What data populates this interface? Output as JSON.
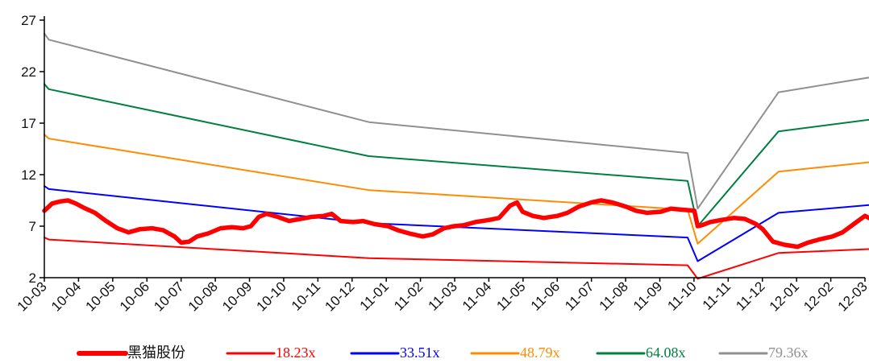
{
  "chart_data": {
    "type": "line",
    "title": "",
    "xlabel": "",
    "ylabel": "",
    "ylim": [
      2,
      27
    ],
    "yticks": [
      2,
      7,
      12,
      17,
      22,
      27
    ],
    "x_start": "2010-03",
    "x_end": "2012-03",
    "x_ticks": [
      "10-03",
      "10-04",
      "10-05",
      "10-06",
      "10-07",
      "10-08",
      "10-09",
      "10-10",
      "10-11",
      "10-12",
      "11-01",
      "11-02",
      "11-03",
      "11-04",
      "11-05",
      "11-06",
      "11-07",
      "11-08",
      "11-09",
      "11-10",
      "11-11",
      "11-12",
      "12-01",
      "12-02",
      "12-03"
    ],
    "grid": false,
    "legend_position": "bottom",
    "series": [
      {
        "name": "黑猫股份",
        "color": "#ff0000",
        "points": [
          [
            "2010-03-01",
            8.5
          ],
          [
            "2010-03-08",
            9.2
          ],
          [
            "2010-03-15",
            9.4
          ],
          [
            "2010-03-22",
            9.5
          ],
          [
            "2010-03-29",
            9.2
          ],
          [
            "2010-04-05",
            8.8
          ],
          [
            "2010-04-15",
            8.3
          ],
          [
            "2010-04-25",
            7.5
          ],
          [
            "2010-05-05",
            6.8
          ],
          [
            "2010-05-15",
            6.4
          ],
          [
            "2010-05-25",
            6.7
          ],
          [
            "2010-06-05",
            6.8
          ],
          [
            "2010-06-15",
            6.6
          ],
          [
            "2010-06-25",
            6.0
          ],
          [
            "2010-07-01",
            5.4
          ],
          [
            "2010-07-08",
            5.5
          ],
          [
            "2010-07-15",
            6.0
          ],
          [
            "2010-07-25",
            6.3
          ],
          [
            "2010-08-05",
            6.8
          ],
          [
            "2010-08-15",
            6.9
          ],
          [
            "2010-08-25",
            6.8
          ],
          [
            "2010-09-01",
            7.0
          ],
          [
            "2010-09-08",
            7.9
          ],
          [
            "2010-09-15",
            8.2
          ],
          [
            "2010-09-25",
            7.9
          ],
          [
            "2010-10-05",
            7.5
          ],
          [
            "2010-10-15",
            7.7
          ],
          [
            "2010-10-25",
            7.9
          ],
          [
            "2010-11-05",
            8.0
          ],
          [
            "2010-11-12",
            8.2
          ],
          [
            "2010-11-20",
            7.5
          ],
          [
            "2010-12-01",
            7.4
          ],
          [
            "2010-12-10",
            7.5
          ],
          [
            "2010-12-20",
            7.2
          ],
          [
            "2011-01-01",
            7.0
          ],
          [
            "2011-01-10",
            6.6
          ],
          [
            "2011-01-20",
            6.3
          ],
          [
            "2011-02-01",
            6.0
          ],
          [
            "2011-02-10",
            6.2
          ],
          [
            "2011-02-20",
            6.8
          ],
          [
            "2011-03-01",
            7.0
          ],
          [
            "2011-03-10",
            7.1
          ],
          [
            "2011-03-20",
            7.4
          ],
          [
            "2011-04-01",
            7.6
          ],
          [
            "2011-04-10",
            7.8
          ],
          [
            "2011-04-20",
            9.0
          ],
          [
            "2011-04-26",
            9.3
          ],
          [
            "2011-05-01",
            8.4
          ],
          [
            "2011-05-10",
            8.0
          ],
          [
            "2011-05-20",
            7.8
          ],
          [
            "2011-06-01",
            8.0
          ],
          [
            "2011-06-10",
            8.3
          ],
          [
            "2011-06-20",
            8.9
          ],
          [
            "2011-07-01",
            9.3
          ],
          [
            "2011-07-10",
            9.5
          ],
          [
            "2011-07-20",
            9.3
          ],
          [
            "2011-08-01",
            8.9
          ],
          [
            "2011-08-10",
            8.5
          ],
          [
            "2011-08-20",
            8.3
          ],
          [
            "2011-09-01",
            8.4
          ],
          [
            "2011-09-10",
            8.7
          ],
          [
            "2011-09-20",
            8.6
          ],
          [
            "2011-10-01",
            8.5
          ],
          [
            "2011-10-04",
            7.0
          ],
          [
            "2011-10-08",
            7.1
          ],
          [
            "2011-10-15",
            7.4
          ],
          [
            "2011-10-25",
            7.6
          ],
          [
            "2011-11-05",
            7.8
          ],
          [
            "2011-11-15",
            7.7
          ],
          [
            "2011-11-25",
            7.2
          ],
          [
            "2011-12-01",
            6.7
          ],
          [
            "2011-12-10",
            5.5
          ],
          [
            "2011-12-20",
            5.2
          ],
          [
            "2012-01-01",
            5.0
          ],
          [
            "2012-01-10",
            5.4
          ],
          [
            "2012-01-20",
            5.7
          ],
          [
            "2012-02-01",
            6.0
          ],
          [
            "2012-02-10",
            6.4
          ],
          [
            "2012-02-20",
            7.2
          ],
          [
            "2012-03-01",
            8.0
          ],
          [
            "2012-03-08",
            7.6
          ],
          [
            "2012-03-15",
            7.5
          ],
          [
            "2012-03-25",
            7.6
          ]
        ]
      },
      {
        "name": "18.23x",
        "color": "#ff0000",
        "points": [
          [
            "2010-03-01",
            5.9
          ],
          [
            "2010-03-05",
            5.7
          ],
          [
            "2010-12-15",
            3.9
          ],
          [
            "2011-09-25",
            3.2
          ],
          [
            "2011-10-04",
            1.9
          ],
          [
            "2011-12-15",
            4.4
          ],
          [
            "2012-03-31",
            4.9
          ]
        ]
      },
      {
        "name": "33.51x",
        "color": "#0000ff",
        "points": [
          [
            "2010-03-01",
            10.9
          ],
          [
            "2010-03-05",
            10.6
          ],
          [
            "2010-12-15",
            7.3
          ],
          [
            "2011-09-25",
            5.9
          ],
          [
            "2011-10-04",
            3.6
          ],
          [
            "2011-12-15",
            8.3
          ],
          [
            "2012-03-31",
            9.3
          ]
        ]
      },
      {
        "name": "48.79x",
        "color": "#ff8c00",
        "points": [
          [
            "2010-03-01",
            15.9
          ],
          [
            "2010-03-05",
            15.5
          ],
          [
            "2010-12-15",
            10.5
          ],
          [
            "2011-09-25",
            8.6
          ],
          [
            "2011-10-04",
            5.3
          ],
          [
            "2011-12-15",
            12.3
          ],
          [
            "2012-03-31",
            13.5
          ]
        ]
      },
      {
        "name": "64.08x",
        "color": "#008040",
        "points": [
          [
            "2010-03-01",
            20.8
          ],
          [
            "2010-03-05",
            20.3
          ],
          [
            "2010-12-15",
            13.8
          ],
          [
            "2011-09-25",
            11.4
          ],
          [
            "2011-10-04",
            7.0
          ],
          [
            "2011-12-15",
            16.2
          ],
          [
            "2012-03-31",
            17.7
          ]
        ]
      },
      {
        "name": "79.36x",
        "color": "#909090",
        "points": [
          [
            "2010-03-01",
            25.7
          ],
          [
            "2010-03-05",
            25.1
          ],
          [
            "2010-12-15",
            17.1
          ],
          [
            "2011-09-25",
            14.1
          ],
          [
            "2011-10-04",
            8.7
          ],
          [
            "2011-12-15",
            20.0
          ],
          [
            "2012-03-31",
            21.9
          ]
        ]
      }
    ]
  }
}
